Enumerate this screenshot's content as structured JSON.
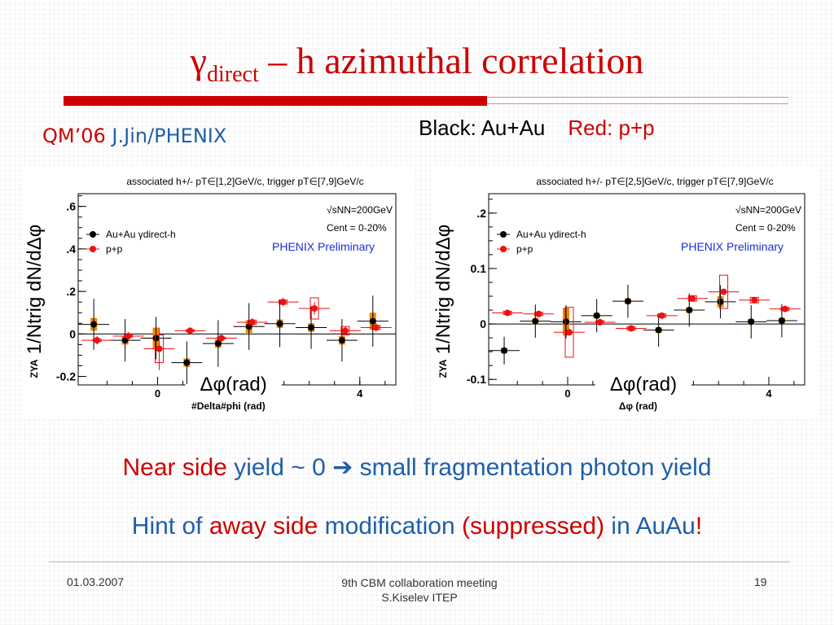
{
  "slide": {
    "title_main": "γ",
    "title_sub": "direct",
    "title_rest": " – h azimuthal correlation",
    "qm_label": "QM’06",
    "qm_author": "J.Jin/PHENIX",
    "legend_black": "Black: Au+Au",
    "legend_red": "Red: p+p",
    "line1_a": "Near side",
    "line1_b": " yield ~ 0 ",
    "line1_arrow": "➔",
    "line1_c": " small fragmentation photon yield",
    "line2_a": "Hint of ",
    "line2_b": "away side",
    "line2_c": " modification ",
    "line2_d": "(suppressed)",
    "line2_e": " in AuAu",
    "line2_f": "!",
    "footer_date": "01.03.2007",
    "footer_meeting": "9th CBM collaboration meeting",
    "footer_author": "S.Kiselev ITEP",
    "footer_page": "19"
  },
  "colors": {
    "title": "#cc0000",
    "blue_text": "#1f5fa8",
    "auau": "#000000",
    "pp": "#ee1111",
    "syst_auau": "#ee8800",
    "phenix": "#1a2fd6"
  },
  "chart_data": [
    {
      "type": "scatter",
      "header": "associated h+/- pT∈[1,2]GeV/c,  trigger pT∈[7,9]GeV/c",
      "energy": "√sNN=200GeV",
      "centrality": "Cent = 0-20%",
      "preliminary": "PHENIX Preliminary",
      "ylabel": "1/Ntrig dN/dΔφ",
      "ylabel_prefix": "ZYA",
      "xlabel": "Δφ(rad)",
      "xlabel_small": "#Delta#phi (rad)",
      "xlim": [
        -1.5708,
        4.7124
      ],
      "ylim": [
        -0.24,
        0.66
      ],
      "yticks": [
        -0.2,
        0,
        0.2,
        0.4,
        0.6
      ],
      "ytick_labels": [
        "-0.2",
        "0",
        ".2",
        ".4",
        ".6"
      ],
      "xticks": [
        0,
        4
      ],
      "xtick_labels": [
        "0",
        "4"
      ],
      "series": [
        {
          "name": "Au+Au γdirect-h",
          "x": [
            -1.23,
            -0.61,
            0.0,
            0.61,
            1.23,
            1.84,
            2.45,
            3.07,
            3.68,
            4.29
          ],
          "y": [
            0.045,
            -0.03,
            -0.02,
            -0.135,
            -0.045,
            0.035,
            0.048,
            0.03,
            -0.03,
            0.06
          ],
          "yerr": [
            0.12,
            0.1,
            0.1,
            0.1,
            0.11,
            0.11,
            0.11,
            0.1,
            0.1,
            0.12
          ],
          "syst": [
            0.03,
            0.02,
            0.05,
            0.02,
            0.02,
            0.03,
            0.02,
            0.02,
            0.02,
            0.04
          ]
        },
        {
          "name": "p+p",
          "x": [
            -1.23,
            -0.61,
            0.0,
            0.61,
            1.23,
            1.84,
            2.45,
            3.07,
            3.68,
            4.29
          ],
          "y": [
            -0.03,
            -0.01,
            -0.07,
            0.015,
            -0.02,
            0.055,
            0.15,
            0.12,
            0.015,
            0.03
          ],
          "yerr": [
            0.02,
            0.02,
            0.1,
            0.015,
            0.02,
            0.02,
            0.02,
            0.03,
            0.02,
            0.02
          ],
          "syst": [
            0.005,
            0.005,
            0.065,
            0.005,
            0.005,
            0.01,
            0.01,
            0.05,
            0.02,
            0.01
          ]
        }
      ]
    },
    {
      "type": "scatter",
      "header": "associated h+/- pT∈[2,5]GeV/c,  trigger pT∈[7,9]GeV/c",
      "energy": "√sNN=200GeV",
      "centrality": "Cent = 0-20%",
      "preliminary": "PHENIX Preliminary",
      "ylabel": "1/Ntrig dN/dΔφ",
      "ylabel_prefix": "ZYA",
      "xlabel": "Δφ(rad)",
      "xlabel_small": "Δφ (rad)",
      "xlim": [
        -1.5708,
        4.7124
      ],
      "ylim": [
        -0.11,
        0.235
      ],
      "yticks": [
        -0.1,
        0,
        0.1,
        0.2
      ],
      "ytick_labels": [
        "-0.1",
        "0",
        "0.1",
        ".2"
      ],
      "xticks": [
        0,
        4
      ],
      "xtick_labels": [
        "0",
        "4"
      ],
      "series": [
        {
          "name": "Au+Au γdirect-h",
          "x": [
            -1.23,
            -0.61,
            0.0,
            0.61,
            1.23,
            1.84,
            2.45,
            3.07,
            3.68,
            4.29
          ],
          "y": [
            -0.048,
            0.005,
            0.004,
            0.015,
            0.041,
            -0.011,
            0.025,
            0.04,
            0.004,
            0.006
          ],
          "yerr": [
            0.025,
            0.03,
            0.03,
            0.03,
            0.03,
            0.03,
            0.03,
            0.03,
            0.03,
            0.03
          ],
          "syst": [
            0.005,
            0.005,
            0.025,
            0.005,
            0.005,
            0.005,
            0.005,
            0.01,
            0.005,
            0.005
          ]
        },
        {
          "name": "p+p",
          "x": [
            -1.23,
            -0.61,
            0.0,
            0.61,
            1.23,
            1.84,
            2.45,
            3.07,
            3.68,
            4.29
          ],
          "y": [
            0.02,
            0.018,
            -0.015,
            0.003,
            -0.008,
            0.015,
            0.046,
            0.058,
            0.043,
            0.027
          ],
          "yerr": [
            0.005,
            0.005,
            0.005,
            0.005,
            0.005,
            0.005,
            0.005,
            0.005,
            0.005,
            0.005
          ],
          "syst": [
            0.003,
            0.003,
            0.045,
            0.003,
            0.003,
            0.003,
            0.005,
            0.03,
            0.005,
            0.003
          ]
        }
      ]
    }
  ]
}
